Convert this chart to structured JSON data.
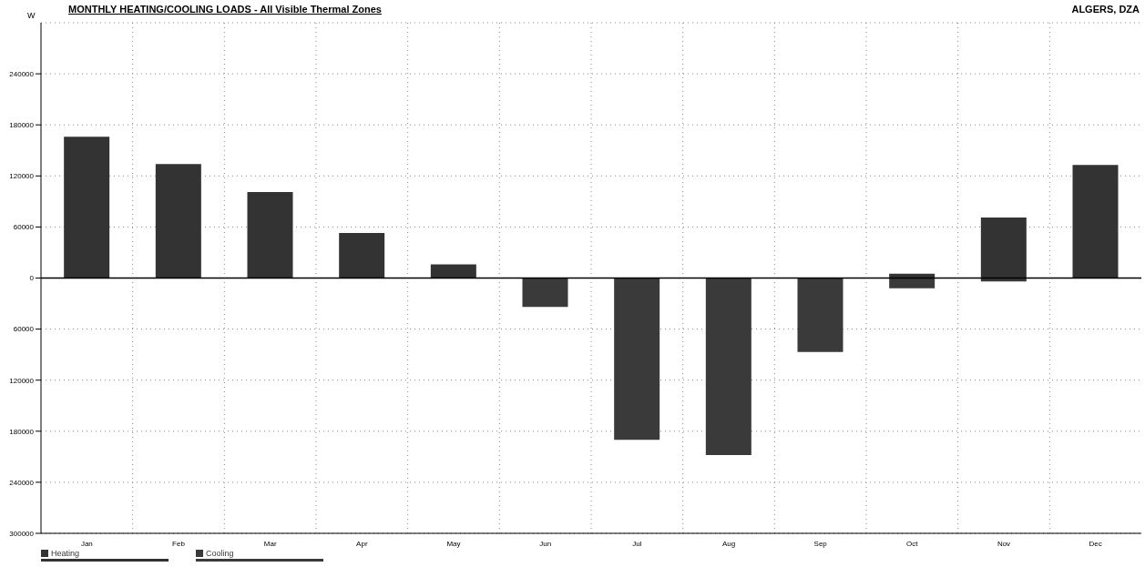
{
  "chart_data": {
    "type": "bar",
    "title": "MONTHLY HEATING/COOLING LOADS - All Visible Thermal Zones",
    "subtitle": "ALGERS, DZA",
    "ylabel": "W",
    "categories": [
      "Jan",
      "Feb",
      "Mar",
      "Apr",
      "May",
      "Jun",
      "Jul",
      "Aug",
      "Sep",
      "Oct",
      "Nov",
      "Dec"
    ],
    "series": [
      {
        "name": "Heating",
        "color": "#333333",
        "values": [
          166000,
          134000,
          101000,
          53000,
          16000,
          null,
          null,
          null,
          null,
          5000,
          71000,
          133000
        ]
      },
      {
        "name": "Cooling",
        "color": "#3a3a3a",
        "values": [
          null,
          null,
          null,
          null,
          null,
          -34000,
          -190000,
          -208000,
          -87000,
          -12000,
          -4000,
          null
        ]
      }
    ],
    "stacked": true,
    "ylim": [
      -300000,
      300000
    ],
    "yticks": [
      {
        "value": -300000,
        "label": "300000"
      },
      {
        "value": -240000,
        "label": "240000"
      },
      {
        "value": -180000,
        "label": "180000"
      },
      {
        "value": -120000,
        "label": "120000"
      },
      {
        "value": -60000,
        "label": "60000"
      },
      0,
      60000,
      120000,
      180000,
      240000
    ],
    "grid": true,
    "legend": "bottom left",
    "ref_lines": [
      {
        "axis": "y",
        "value": 0,
        "color": "#000000"
      }
    ]
  }
}
